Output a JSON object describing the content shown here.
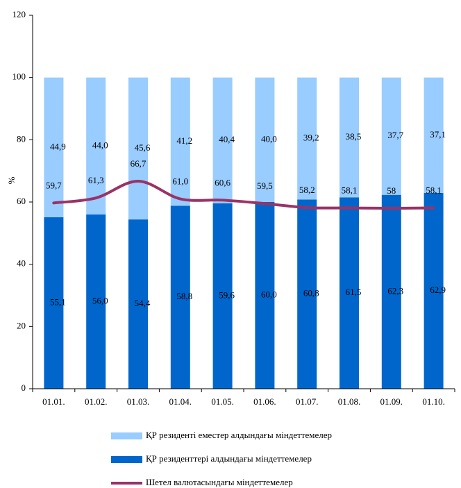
{
  "chart_data": {
    "type": "bar",
    "categories": [
      "01.01.",
      "01.02.",
      "01.03.",
      "01.04.",
      "01.05.",
      "01.06.",
      "01.07.",
      "01.08.",
      "01.09.",
      "01.10."
    ],
    "y_label": "%",
    "ylim": [
      0,
      120
    ],
    "yticks": [
      0,
      20,
      40,
      60,
      80,
      100,
      120
    ],
    "stacked": true,
    "series": [
      {
        "name": "ҚР резиденттері алдындағы міндеттемелер",
        "color": "#0066cc",
        "type": "bar",
        "values": [
          55.1,
          56.0,
          54.4,
          58.8,
          59.6,
          60.0,
          60.8,
          61.5,
          62.3,
          62.9
        ],
        "value_labels": [
          "55,1",
          "56,0",
          "54,4",
          "58,8",
          "59,6",
          "60,0",
          "60,8",
          "61,5",
          "62,3",
          "62,9"
        ]
      },
      {
        "name": "ҚР резиденті еместер алдындағы міндеттемелер",
        "color": "#99ccff",
        "type": "bar",
        "values": [
          44.9,
          44.0,
          45.6,
          41.2,
          40.4,
          40.0,
          39.2,
          38.5,
          37.7,
          37.1
        ],
        "value_labels": [
          "44,9",
          "44,0",
          "45,6",
          "41,2",
          "40,4",
          "40,0",
          "39,2",
          "38,5",
          "37,7",
          "37,1"
        ]
      },
      {
        "name": "Шетел валютасындағы міндеттемелер",
        "color": "#993366",
        "type": "line",
        "values": [
          59.7,
          61.3,
          66.7,
          61.0,
          60.6,
          59.5,
          58.2,
          58.1,
          58,
          58.1
        ],
        "value_labels": [
          "59,7",
          "61,3",
          "66,7",
          "61,0",
          "60,6",
          "59,5",
          "58,2",
          "58,1",
          "58",
          "58,1"
        ]
      }
    ],
    "legend_order": [
      1,
      0,
      2
    ]
  }
}
